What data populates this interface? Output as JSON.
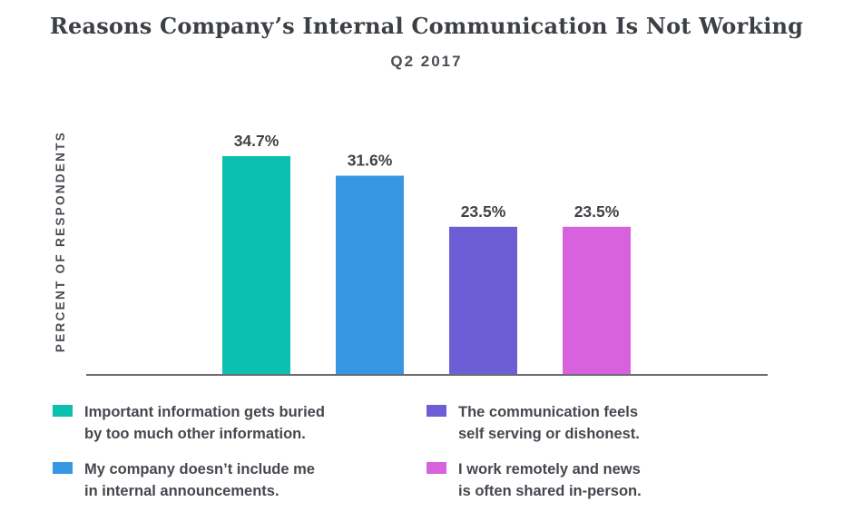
{
  "chart_data": {
    "type": "bar",
    "title": "Reasons Company’s Internal Communication Is Not Working",
    "subtitle": "Q2 2017",
    "ylabel": "PERCENT OF RESPONDENTS",
    "xlabel": "",
    "ylim": [
      0,
      40
    ],
    "grid": false,
    "legend_placement": "bottom",
    "categories": [
      "Important information gets buried by too much other information.",
      "My company doesn’t include me in internal announcements.",
      "The communication feels self serving or dishonest.",
      "I work remotely and news is often shared in-person."
    ],
    "values": [
      34.7,
      31.6,
      23.5,
      23.5
    ],
    "value_labels": [
      "34.7%",
      "31.6%",
      "23.5%",
      "23.5%"
    ],
    "colors": [
      "#0bc0ae",
      "#3897e3",
      "#6e5ed6",
      "#d862dd"
    ]
  },
  "legend": [
    {
      "line1": "Important information gets buried",
      "line2": "by too much other information."
    },
    {
      "line1": "My company doesn’t include me",
      "line2": "in internal announcements."
    },
    {
      "line1": "The communication feels",
      "line2": "self serving or dishonest."
    },
    {
      "line1": "I work remotely and news",
      "line2": "is often shared in-person."
    }
  ],
  "axis_color": "#6b6f74"
}
